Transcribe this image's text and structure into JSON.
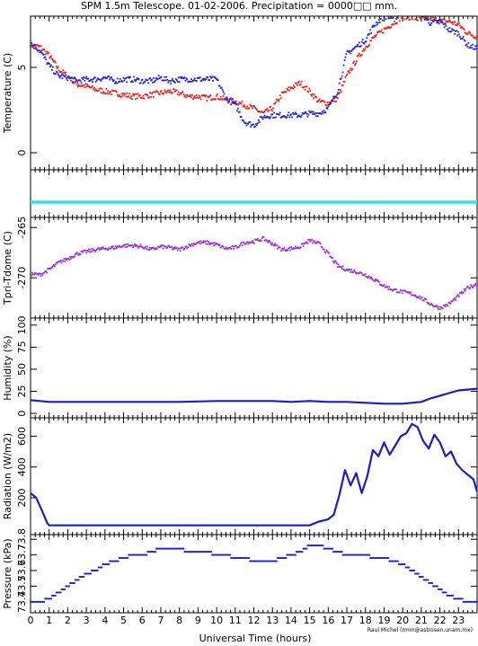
{
  "title": "SPM 1.5m Telescope. 01-02-2006. Precipitation = 0000□□ mm.",
  "xlabel": "Universal Time (hours)",
  "credit": "Raul Michel (rmm@astrosen.unam.mx)",
  "colors": {
    "red": "#e8201c",
    "blue": "#1a22d8",
    "cyan": "#34e0e6",
    "purple": "#9930d6",
    "navy": "#1c1cc8",
    "frame": "#000000"
  },
  "chart_data": [
    {
      "type": "scatter",
      "ylabel": "Temperature (C)",
      "ylim": [
        -1,
        8
      ],
      "yticks": [
        0,
        5
      ],
      "xlim": [
        0,
        24
      ],
      "series": [
        {
          "color": "red",
          "x": [
            0,
            0.5,
            1,
            1.5,
            2,
            2.5,
            3,
            3.5,
            4,
            4.5,
            5,
            5.5,
            6,
            6.5,
            7,
            7.5,
            8,
            8.5,
            9,
            9.5,
            10,
            10.5,
            11,
            11.5,
            12,
            12.5,
            13,
            13.5,
            14,
            14.5,
            15,
            15.5,
            16,
            16.5,
            17,
            17.5,
            18,
            18.5,
            19,
            19.5,
            20,
            20.5,
            21,
            21.5,
            22,
            22.5,
            23,
            23.5,
            24
          ],
          "y": [
            6.3,
            6.2,
            5.7,
            4.9,
            4.5,
            4.0,
            3.9,
            3.7,
            3.6,
            3.5,
            3.4,
            3.3,
            3.3,
            3.4,
            3.5,
            3.6,
            3.5,
            3.3,
            3.3,
            3.2,
            3.3,
            3.1,
            3.0,
            2.8,
            2.6,
            2.3,
            2.6,
            3.4,
            3.8,
            4.1,
            3.6,
            3.0,
            2.9,
            3.2,
            4.5,
            5.4,
            6.2,
            6.8,
            7.2,
            7.6,
            8.0,
            7.9,
            7.8,
            7.9,
            7.7,
            7.7,
            7.5,
            7.0,
            6.8
          ]
        },
        {
          "color": "blue",
          "x": [
            0,
            0.5,
            1,
            1.5,
            2,
            2.5,
            3,
            3.5,
            4,
            4.5,
            5,
            5.5,
            6,
            6.5,
            7,
            7.5,
            8,
            8.5,
            9,
            9.5,
            10,
            10.5,
            11,
            11.5,
            12,
            12.5,
            13,
            13.5,
            14,
            14.5,
            15,
            15.5,
            16,
            16.5,
            17,
            17.5,
            18,
            18.5,
            19,
            19.5,
            20,
            20.5,
            21,
            21.5,
            22,
            22.5,
            23,
            23.5,
            24
          ],
          "y": [
            6.4,
            6.0,
            5.1,
            4.5,
            4.4,
            4.2,
            4.3,
            4.3,
            4.4,
            4.2,
            4.3,
            4.3,
            4.2,
            4.2,
            4.4,
            4.2,
            4.3,
            4.3,
            4.3,
            4.3,
            4.3,
            3.2,
            2.8,
            1.8,
            1.6,
            2.1,
            2.2,
            2.2,
            2.2,
            2.2,
            2.3,
            2.3,
            2.6,
            3.6,
            5.8,
            6.2,
            6.6,
            7.5,
            8.0,
            7.9,
            8.2,
            8.4,
            8.1,
            7.6,
            7.7,
            7.2,
            7.0,
            6.3,
            6.1
          ]
        }
      ]
    },
    {
      "type": "line",
      "ylabel": "",
      "series": [
        {
          "color": "cyan",
          "x": [
            0,
            24
          ],
          "y": [
            0,
            0
          ]
        }
      ]
    },
    {
      "type": "scatter",
      "ylabel": "Tpri-Tdome (C)",
      "ylim": [
        -274,
        -264
      ],
      "yticks": [
        -270,
        -265
      ],
      "xlim": [
        0,
        24
      ],
      "series": [
        {
          "color": "purple",
          "x": [
            0,
            0.5,
            1,
            1.5,
            2,
            2.5,
            3,
            3.5,
            4,
            4.5,
            5,
            5.5,
            6,
            6.5,
            7,
            7.5,
            8,
            8.5,
            9,
            9.5,
            10,
            10.5,
            11,
            11.5,
            12,
            12.5,
            13,
            13.5,
            14,
            14.5,
            15,
            15.5,
            16,
            16.5,
            17,
            17.5,
            18,
            18.5,
            19,
            19.5,
            20,
            20.5,
            21,
            21.5,
            22,
            22.5,
            23,
            23.5,
            24
          ],
          "y": [
            -269.6,
            -269.7,
            -269.2,
            -268.5,
            -268.1,
            -267.6,
            -267.4,
            -267.2,
            -267.1,
            -267.0,
            -266.8,
            -266.8,
            -266.9,
            -267.2,
            -266.9,
            -267.0,
            -267.2,
            -266.8,
            -266.5,
            -266.5,
            -266.7,
            -267.1,
            -267.0,
            -266.5,
            -266.4,
            -266.1,
            -266.6,
            -267.2,
            -267.1,
            -266.9,
            -266.3,
            -266.6,
            -267.6,
            -268.8,
            -269.2,
            -269.4,
            -269.7,
            -270.2,
            -270.8,
            -271.2,
            -271.4,
            -271.6,
            -272.0,
            -272.6,
            -273.0,
            -272.6,
            -271.8,
            -271.0,
            -270.6
          ]
        }
      ]
    },
    {
      "type": "line",
      "ylabel": "Humidity (%)",
      "ylim": [
        -5,
        108
      ],
      "yticks": [
        0,
        25,
        50,
        75,
        100
      ],
      "tick_labels": [
        "0",
        "25",
        "50",
        "75",
        "100"
      ],
      "xlim": [
        0,
        24
      ],
      "series": [
        {
          "color": "navy",
          "x": [
            0,
            0.5,
            1,
            2,
            4,
            6,
            8,
            10,
            12,
            13,
            14,
            15,
            16,
            17,
            18,
            19,
            20,
            20.5,
            21,
            21.5,
            22,
            22.5,
            23,
            23.5,
            24
          ],
          "y": [
            15,
            14,
            13,
            13,
            13,
            13,
            13,
            14,
            14,
            14,
            13,
            14,
            13,
            13,
            12,
            11,
            11,
            12,
            13,
            17,
            20,
            23,
            26,
            27,
            28
          ]
        }
      ]
    },
    {
      "type": "line",
      "ylabel": "Radiation (W/m2)",
      "ylim": [
        -40,
        720
      ],
      "yticks": [
        200,
        400,
        600
      ],
      "xlim": [
        0,
        24
      ],
      "series": [
        {
          "color": "navy",
          "x": [
            0,
            0.3,
            0.6,
            0.9,
            1,
            2,
            4,
            6,
            8,
            10,
            12,
            14,
            15,
            15.5,
            16,
            16.3,
            16.6,
            16.9,
            17.2,
            17.5,
            17.8,
            18.1,
            18.4,
            18.7,
            19,
            19.3,
            19.6,
            19.9,
            20.2,
            20.5,
            20.8,
            21.1,
            21.4,
            21.7,
            22,
            22.3,
            22.6,
            22.9,
            23.2,
            23.5,
            23.8,
            24
          ],
          "y": [
            230,
            200,
            120,
            35,
            20,
            20,
            20,
            20,
            20,
            20,
            20,
            20,
            20,
            45,
            60,
            90,
            220,
            380,
            280,
            360,
            230,
            340,
            510,
            470,
            560,
            480,
            540,
            600,
            620,
            680,
            660,
            570,
            520,
            610,
            560,
            470,
            500,
            420,
            380,
            350,
            320,
            240
          ]
        }
      ]
    },
    {
      "type": "scatter",
      "ylabel": "Pressure (kPa)",
      "ylim": [
        73.33,
        73.83
      ],
      "yticks": [
        73.4,
        73.5,
        73.6,
        73.7,
        73.8
      ],
      "tick_labels": [
        "73.4",
        "73.5",
        "73.6",
        "73.7",
        "73.8"
      ],
      "xlim": [
        0,
        24
      ],
      "series": [
        {
          "color": "blue",
          "x": [
            0,
            0.5,
            1,
            1.5,
            2,
            2.5,
            3,
            3.5,
            4,
            4.5,
            5,
            5.5,
            6,
            6.5,
            7,
            7.5,
            8,
            8.5,
            9,
            9.5,
            10,
            10.5,
            11,
            11.5,
            12,
            12.5,
            13,
            13.5,
            14,
            14.5,
            15,
            15.5,
            16,
            16.5,
            17,
            17.5,
            18,
            18.5,
            19,
            19.5,
            20,
            20.5,
            21,
            21.5,
            22,
            22.5,
            23,
            23.5,
            24
          ],
          "y": [
            73.4,
            73.4,
            73.42,
            73.46,
            73.5,
            73.54,
            73.58,
            73.6,
            73.64,
            73.66,
            73.68,
            73.7,
            73.7,
            73.72,
            73.74,
            73.74,
            73.74,
            73.72,
            73.72,
            73.72,
            73.7,
            73.7,
            73.68,
            73.68,
            73.66,
            73.66,
            73.66,
            73.68,
            73.7,
            73.72,
            73.76,
            73.76,
            73.74,
            73.72,
            73.7,
            73.7,
            73.7,
            73.68,
            73.68,
            73.66,
            73.64,
            73.6,
            73.56,
            73.52,
            73.48,
            73.44,
            73.42,
            73.4,
            73.4
          ]
        }
      ]
    }
  ],
  "xaxis": {
    "xlim": [
      0,
      24
    ],
    "ticks": [
      0,
      1,
      2,
      3,
      4,
      5,
      6,
      7,
      8,
      9,
      10,
      11,
      12,
      13,
      14,
      15,
      16,
      17,
      18,
      19,
      20,
      21,
      22,
      23
    ]
  }
}
